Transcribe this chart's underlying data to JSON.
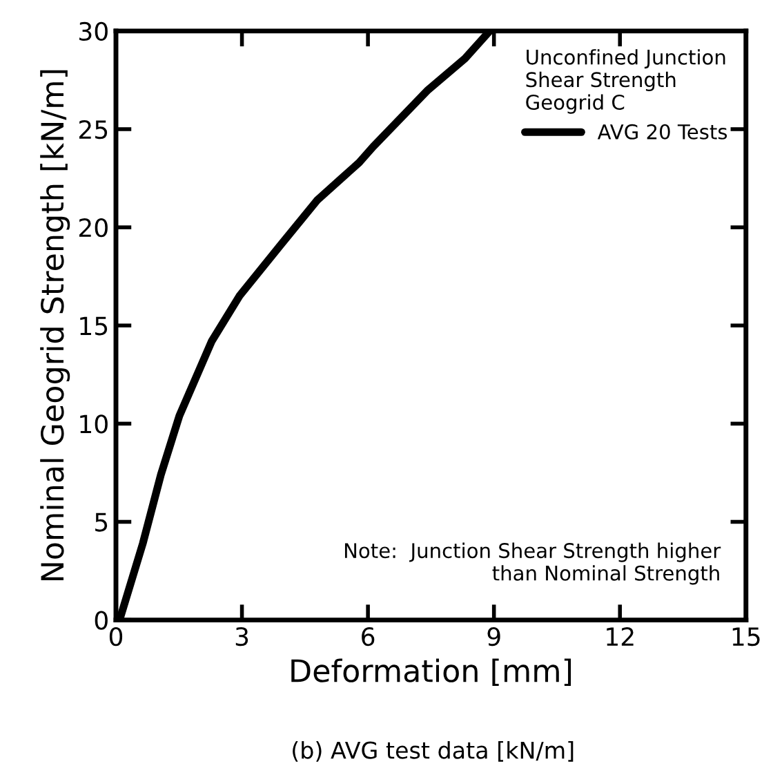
{
  "chart_data": {
    "type": "line",
    "xlabel": "Deformation [mm]",
    "ylabel": "Nominal Geogrid Strength [kN/m]",
    "subtitle": "(b) AVG test data [kN/m]",
    "legend_title": "Unconfined Junction\nShear Strength\nGeogrid C",
    "legend": "top right",
    "annotations": [
      "Note:  Junction Shear Strength higher\n           than Nominal Strength"
    ],
    "series": [
      {
        "name": "AVG 20 Tests",
        "color": "#000000",
        "x": [
          0,
          0.1,
          0.64,
          1.07,
          1.51,
          2.28,
          2.94,
          3.92,
          4.8,
          5.79,
          6.12,
          7.43,
          8.31,
          8.9
        ],
        "values": [
          0,
          0.1,
          3.9,
          7.4,
          10.4,
          14.2,
          16.5,
          19.1,
          21.4,
          23.3,
          24.1,
          27.0,
          28.6,
          30
        ]
      }
    ],
    "xlim": [
      0,
      15
    ],
    "ylim": [
      0,
      30
    ],
    "xticks": [
      0,
      3,
      6,
      9,
      12,
      15
    ],
    "yticks": [
      0,
      5,
      10,
      15,
      20,
      25,
      30
    ],
    "grid": false,
    "line_style": "solid",
    "marker": "none"
  }
}
